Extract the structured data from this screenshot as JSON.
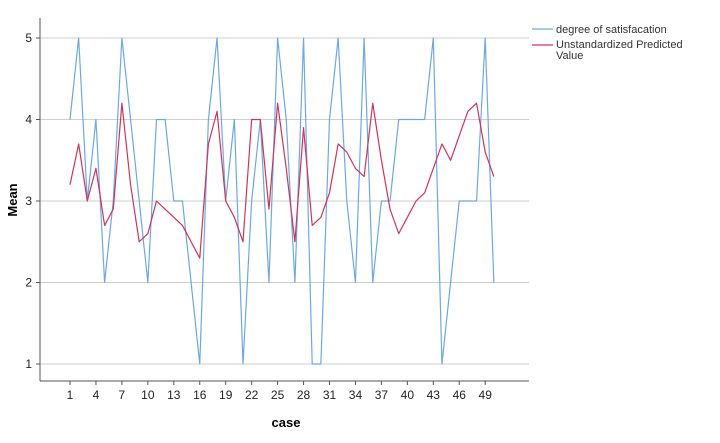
{
  "chart_data": {
    "type": "line",
    "xlabel": "case",
    "ylabel": "Mean",
    "ylim": [
      0.9,
      5.3
    ],
    "yticks": [
      1,
      2,
      3,
      4,
      5
    ],
    "xticks": [
      1,
      4,
      7,
      10,
      13,
      16,
      19,
      22,
      25,
      28,
      31,
      34,
      37,
      40,
      43,
      46,
      49
    ],
    "x": [
      1,
      2,
      3,
      4,
      5,
      6,
      7,
      8,
      9,
      10,
      11,
      12,
      13,
      14,
      15,
      16,
      17,
      18,
      19,
      20,
      21,
      22,
      23,
      24,
      25,
      26,
      27,
      28,
      29,
      30,
      31,
      32,
      33,
      34,
      35,
      36,
      37,
      38,
      39,
      40,
      41,
      42,
      43,
      44,
      45,
      46,
      47,
      48,
      49,
      50
    ],
    "grid": "horizontal",
    "legend_position": "top-right",
    "series": [
      {
        "name": "degree of satisfacation",
        "color": "#6fa8dc",
        "values": [
          4,
          5,
          3,
          4,
          2,
          3,
          5,
          4,
          3,
          2,
          4,
          4,
          3,
          3,
          2,
          1,
          4,
          5,
          3,
          4,
          1,
          3,
          4,
          2,
          5,
          4,
          2,
          5,
          1,
          1,
          4,
          5,
          3,
          2,
          5,
          2,
          3,
          3,
          4,
          4,
          4,
          4,
          5,
          1,
          2,
          3,
          3,
          3,
          5,
          2
        ]
      },
      {
        "name": "Unstandardized Predicted Value",
        "color": "#c8365a",
        "values": [
          3.2,
          3.7,
          3.0,
          3.4,
          2.7,
          2.9,
          4.2,
          3.2,
          2.5,
          2.6,
          3.0,
          2.9,
          2.8,
          2.7,
          2.5,
          2.3,
          3.7,
          4.1,
          3.0,
          2.8,
          2.5,
          4.0,
          4.0,
          2.9,
          4.2,
          3.4,
          2.5,
          3.9,
          2.7,
          2.8,
          3.1,
          3.7,
          3.6,
          3.4,
          3.3,
          4.2,
          3.5,
          2.9,
          2.6,
          2.8,
          3.0,
          3.1,
          3.4,
          3.7,
          3.5,
          3.8,
          4.1,
          4.2,
          3.6,
          3.3
        ]
      }
    ],
    "legend": [
      {
        "line1": "degree of satisfacation",
        "line2": ""
      },
      {
        "line1": "Unstandardized Predicted",
        "line2": "Value"
      }
    ]
  }
}
